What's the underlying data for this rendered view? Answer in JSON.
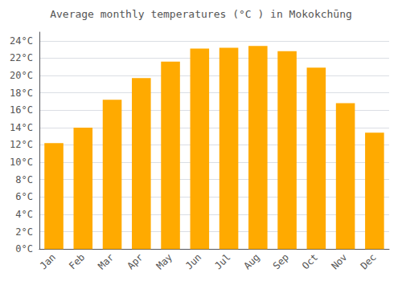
{
  "chart_data": {
    "type": "bar",
    "title": "Average monthly temperatures (°C ) in Mokokchūng",
    "categories": [
      "Jan",
      "Feb",
      "Mar",
      "Apr",
      "May",
      "Jun",
      "Jul",
      "Aug",
      "Sep",
      "Oct",
      "Nov",
      "Dec"
    ],
    "values": [
      12.2,
      14.0,
      17.2,
      19.7,
      21.6,
      23.1,
      23.2,
      23.4,
      22.8,
      20.9,
      16.8,
      13.4
    ],
    "color": "#FFAA00",
    "ylim": [
      0,
      25
    ],
    "yticks": [
      {
        "value": 0,
        "label": "0°C"
      },
      {
        "value": 2,
        "label": "2°C"
      },
      {
        "value": 4,
        "label": "4°C"
      },
      {
        "value": 6,
        "label": "6°C"
      },
      {
        "value": 8,
        "label": "8°C"
      },
      {
        "value": 10,
        "label": "10°C"
      },
      {
        "value": 12,
        "label": "12°C"
      },
      {
        "value": 14,
        "label": "14°C"
      },
      {
        "value": 16,
        "label": "16°C"
      },
      {
        "value": 18,
        "label": "18°C"
      },
      {
        "value": 20,
        "label": "20°C"
      },
      {
        "value": 22,
        "label": "22°C"
      },
      {
        "value": 24,
        "label": "24°C"
      }
    ],
    "grid": true
  }
}
